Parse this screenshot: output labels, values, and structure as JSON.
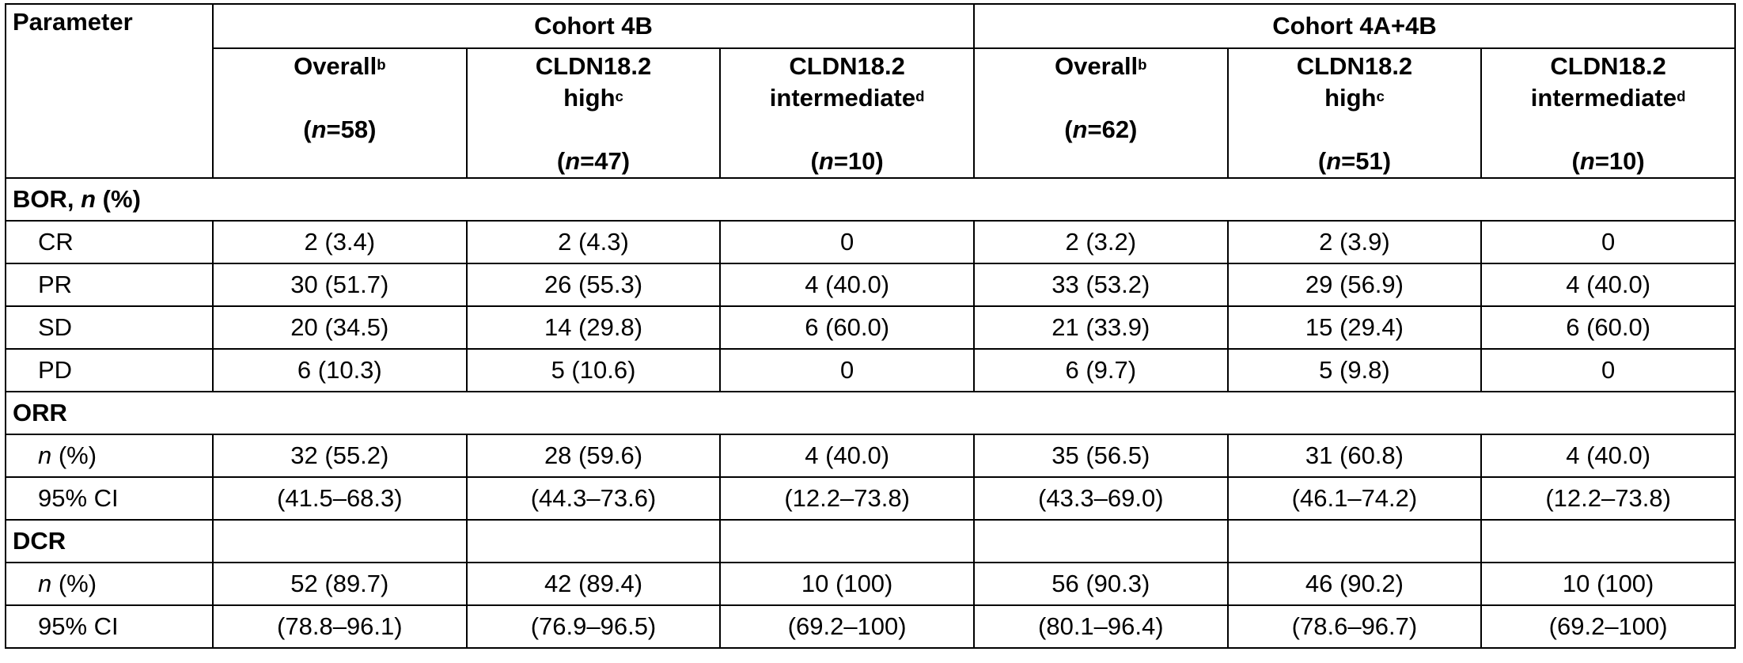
{
  "table": {
    "header": {
      "parameter": "Parameter",
      "groups": [
        "Cohort 4B",
        "Cohort 4A+4B"
      ],
      "columns": [
        {
          "name": "Overall<sup>b</sup>",
          "n": "(<i>n</i>=58)"
        },
        {
          "name": "CLDN18.2<br>high<sup>c</sup>",
          "n": "(<i>n</i>=47)"
        },
        {
          "name": "CLDN18.2<br>intermediate<sup>d</sup>",
          "n": "(<i>n</i>=10)"
        },
        {
          "name": "Overall<sup>b</sup>",
          "n": "(<i>n</i>=62)"
        },
        {
          "name": "CLDN18.2<br>high<sup>c</sup>",
          "n": "(<i>n</i>=51)"
        },
        {
          "name": "CLDN18.2<br>intermediate<sup>d</sup>",
          "n": "(<i>n</i>=10)"
        }
      ]
    },
    "rows": [
      {
        "section": "BOR, <i>n</i> (%)"
      },
      {
        "label": "CR",
        "cells": [
          "2 (3.4)",
          "2 (4.3)",
          "0",
          "2 (3.2)",
          "2 (3.9)",
          "0"
        ]
      },
      {
        "label": "PR",
        "cells": [
          "30 (51.7)",
          "26 (55.3)",
          "4 (40.0)",
          "33 (53.2)",
          "29 (56.9)",
          "4 (40.0)"
        ]
      },
      {
        "label": "SD",
        "cells": [
          "20 (34.5)",
          "14 (29.8)",
          "6 (60.0)",
          "21 (33.9)",
          "15 (29.4)",
          "6 (60.0)"
        ]
      },
      {
        "label": "PD",
        "cells": [
          "6 (10.3)",
          "5 (10.6)",
          "0",
          "6 (9.7)",
          "5 (9.8)",
          "0"
        ]
      },
      {
        "section": "ORR"
      },
      {
        "label": "<i>n</i> (%)",
        "cells": [
          "32 (55.2)",
          "28 (59.6)",
          "4 (40.0)",
          "35 (56.5)",
          "31 (60.8)",
          "4 (40.0)"
        ]
      },
      {
        "label": "95% CI",
        "cells": [
          "(41.5–68.3)",
          "(44.3–73.6)",
          "(12.2–73.8)",
          "(43.3–69.0)",
          "(46.1–74.2)",
          "(12.2–73.8)"
        ]
      },
      {
        "section": "DCR",
        "split": true
      },
      {
        "label": "<i>n</i> (%)",
        "cells": [
          "52 (89.7)",
          "42 (89.4)",
          "10 (100)",
          "56 (90.3)",
          "46 (90.2)",
          "10 (100)"
        ]
      },
      {
        "label": "95% CI",
        "cells": [
          "(78.8–96.1)",
          "(76.9–96.5)",
          "(69.2–100)",
          "(80.1–96.4)",
          "(78.6–96.7)",
          "(69.2–100)"
        ]
      }
    ]
  }
}
